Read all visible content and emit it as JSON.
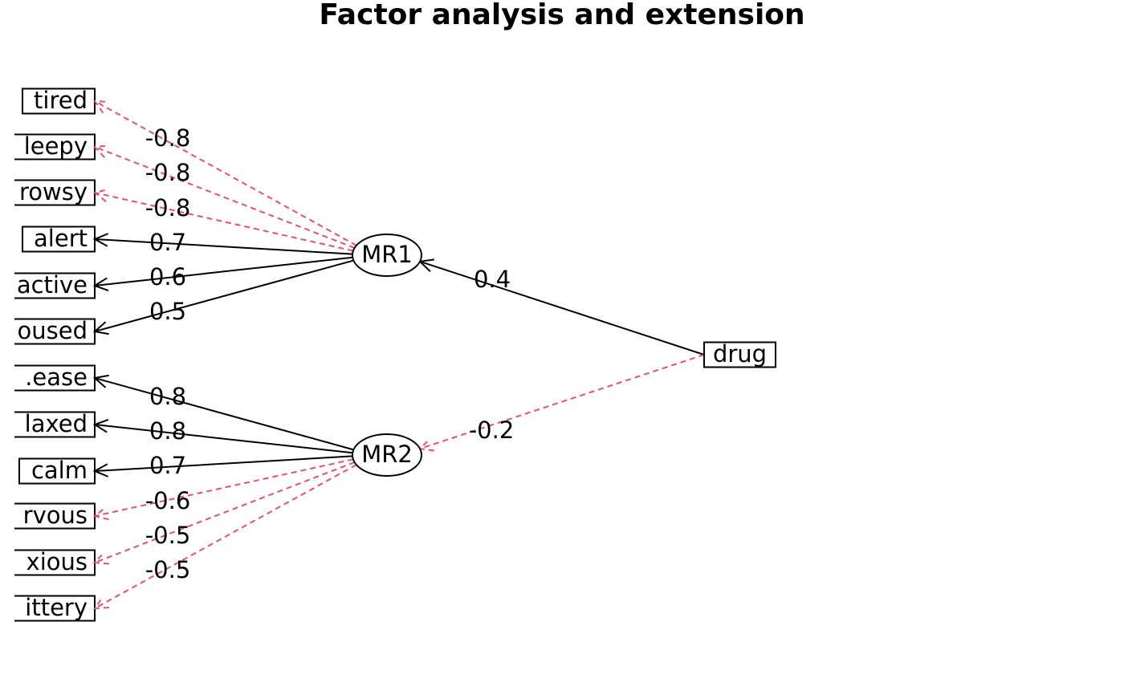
{
  "title": "Factor analysis and extension",
  "variables": [
    "tired",
    "leepy",
    "rowsy",
    "alert",
    "active",
    "oused",
    ".ease",
    "laxed",
    "calm",
    "rvous",
    "xious",
    "ittery"
  ],
  "factors": [
    {
      "label": "MR1",
      "loadings": [
        -0.8,
        -0.8,
        -0.8,
        0.7,
        0.6,
        0.5
      ]
    },
    {
      "label": "MR2",
      "loadings": [
        0.8,
        0.8,
        0.7,
        -0.6,
        -0.5,
        -0.5
      ]
    }
  ],
  "extension": {
    "label": "drug",
    "loadings": [
      0.4,
      -0.2
    ]
  }
}
